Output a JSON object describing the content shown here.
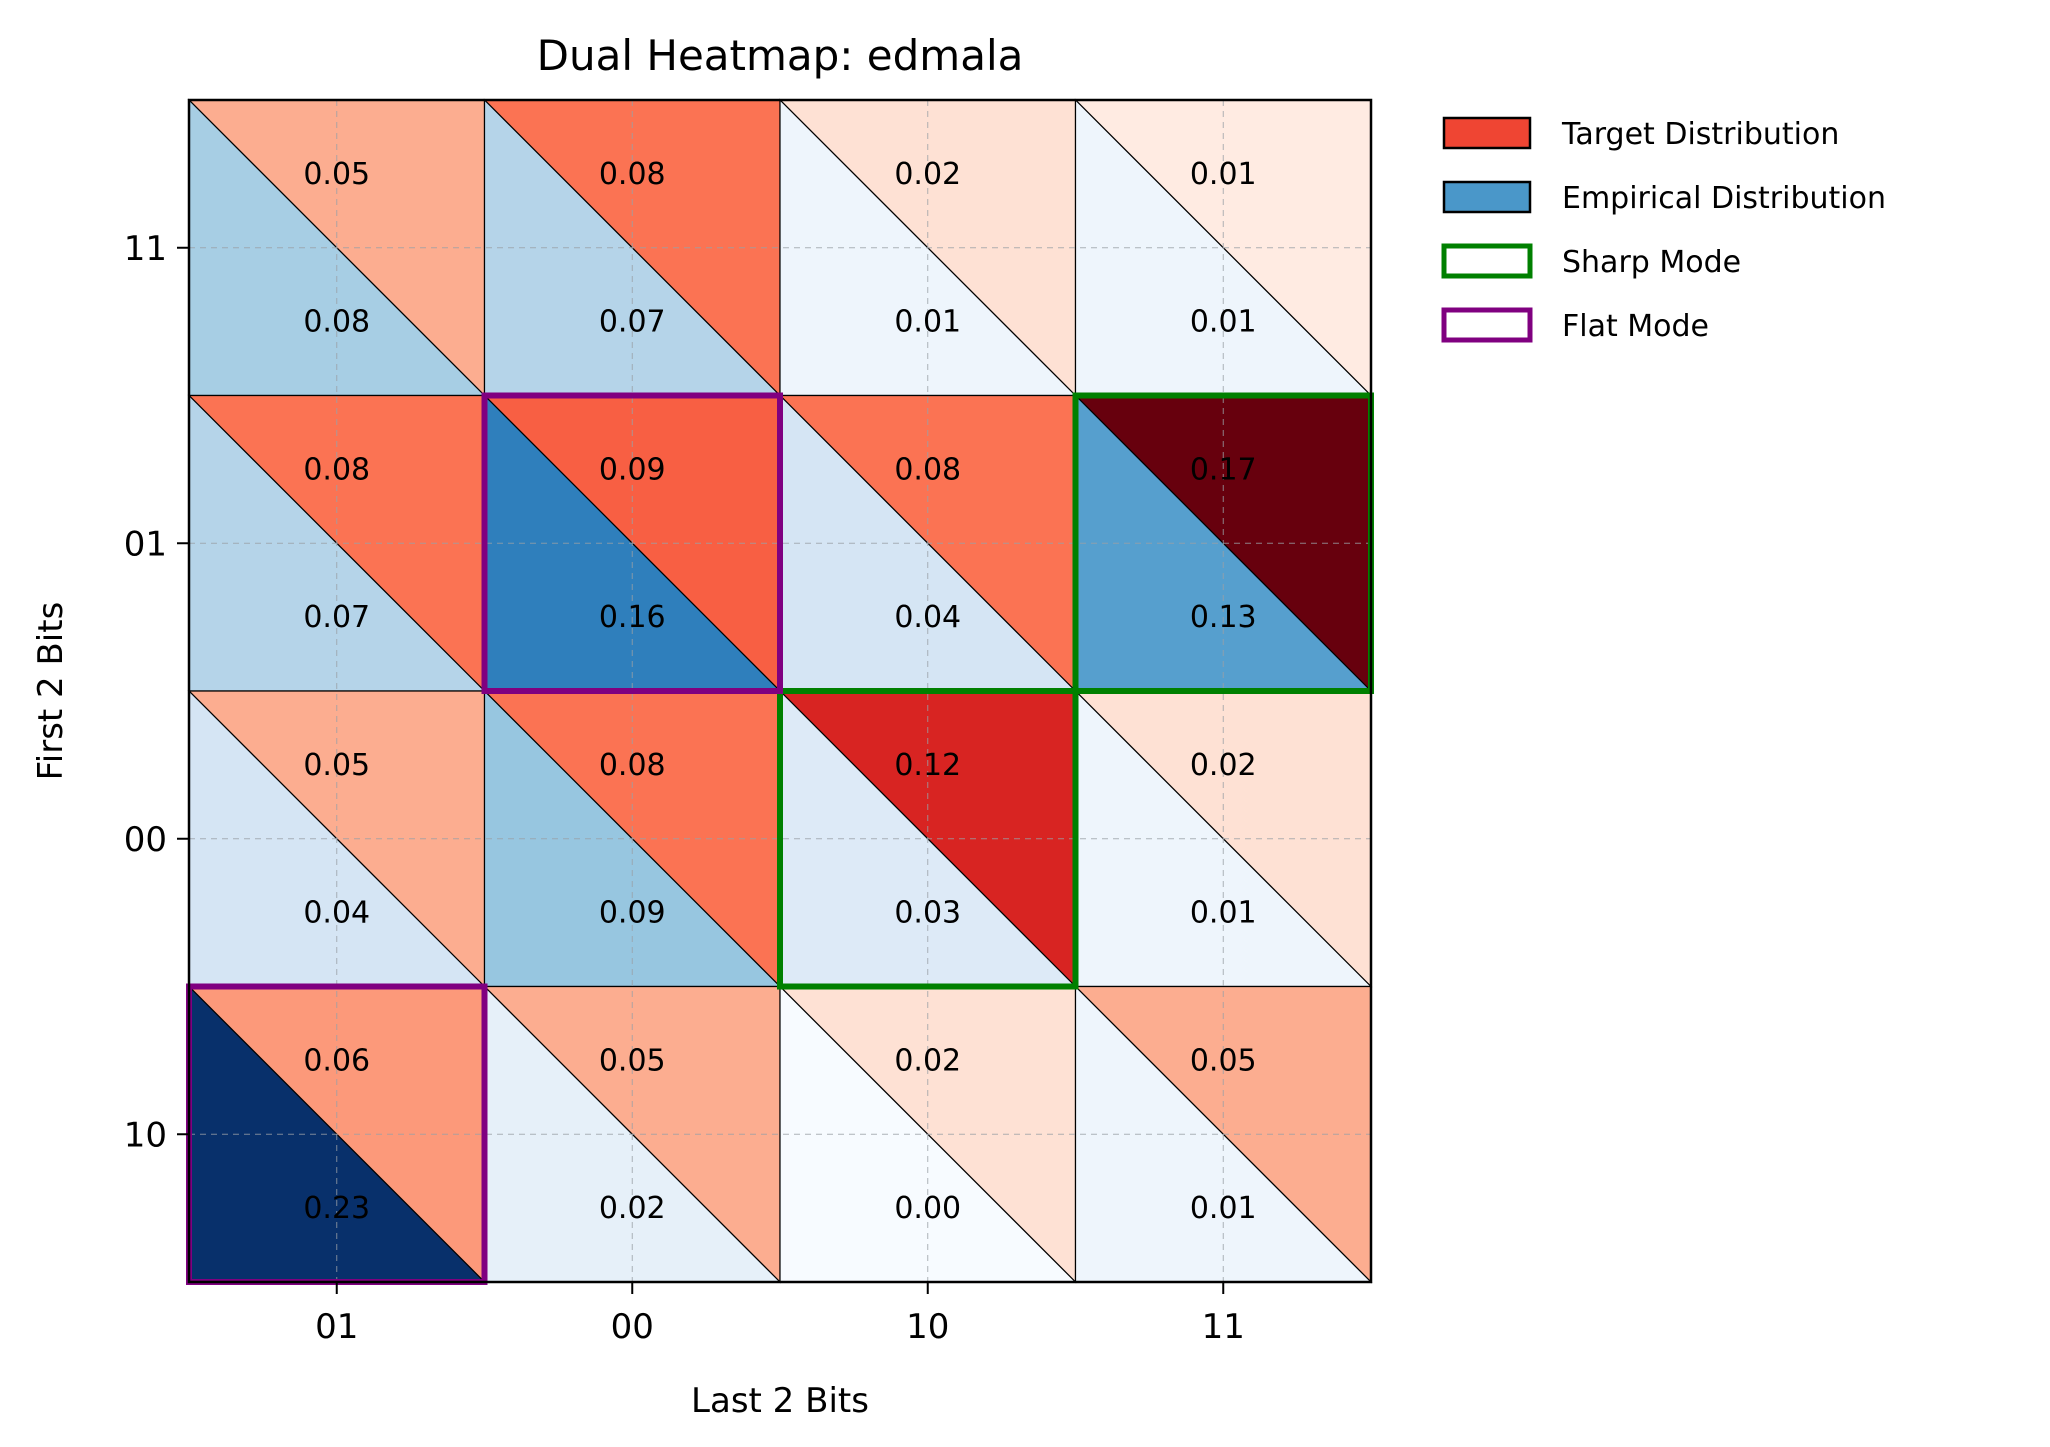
{
  "chart_data": {
    "type": "heatmap",
    "title": "Dual Heatmap: edmala",
    "xlabel": "Last 2 Bits",
    "ylabel": "First 2 Bits",
    "x_categories": [
      "01",
      "00",
      "10",
      "11"
    ],
    "y_categories": [
      "11",
      "01",
      "00",
      "10"
    ],
    "grid": true,
    "legend_position": "outside-right",
    "series": [
      {
        "name": "Target Distribution",
        "color": "#ef4533",
        "colormap": "Reds",
        "triangle": "upper",
        "values": [
          [
            0.05,
            0.08,
            0.02,
            0.01
          ],
          [
            0.08,
            0.09,
            0.08,
            0.17
          ],
          [
            0.05,
            0.08,
            0.12,
            0.02
          ],
          [
            0.06,
            0.05,
            0.02,
            0.05
          ]
        ],
        "labels": [
          [
            "0.05",
            "0.08",
            "0.02",
            "0.01"
          ],
          [
            "0.08",
            "0.09",
            "0.08",
            "0.17"
          ],
          [
            "0.05",
            "0.08",
            "0.12",
            "0.02"
          ],
          [
            "0.06",
            "0.05",
            "0.02",
            "0.05"
          ]
        ]
      },
      {
        "name": "Empirical Distribution",
        "color": "#4a97c9",
        "colormap": "Blues",
        "triangle": "lower",
        "values": [
          [
            0.08,
            0.07,
            0.01,
            0.01
          ],
          [
            0.07,
            0.16,
            0.04,
            0.13
          ],
          [
            0.04,
            0.09,
            0.03,
            0.01
          ],
          [
            0.23,
            0.02,
            0.0,
            0.01
          ]
        ],
        "labels": [
          [
            "0.08",
            "0.07",
            "0.01",
            "0.01"
          ],
          [
            "0.07",
            "0.16",
            "0.04",
            "0.13"
          ],
          [
            "0.04",
            "0.09",
            "0.03",
            "0.01"
          ],
          [
            "0.23",
            "0.02",
            "0.00",
            "0.01"
          ]
        ]
      }
    ],
    "highlights": [
      {
        "name": "Sharp Mode",
        "color": "#008000",
        "cells": [
          [
            1,
            3
          ],
          [
            2,
            2
          ]
        ]
      },
      {
        "name": "Flat Mode",
        "color": "#800080",
        "cells": [
          [
            1,
            1
          ],
          [
            3,
            0
          ]
        ]
      }
    ],
    "legend": [
      {
        "label": "Target Distribution",
        "kind": "fill",
        "color": "#ef4533"
      },
      {
        "label": "Empirical Distribution",
        "kind": "fill",
        "color": "#4a97c9"
      },
      {
        "label": "Sharp Mode",
        "kind": "outline",
        "color": "#008000"
      },
      {
        "label": "Flat Mode",
        "kind": "outline",
        "color": "#800080"
      }
    ]
  }
}
